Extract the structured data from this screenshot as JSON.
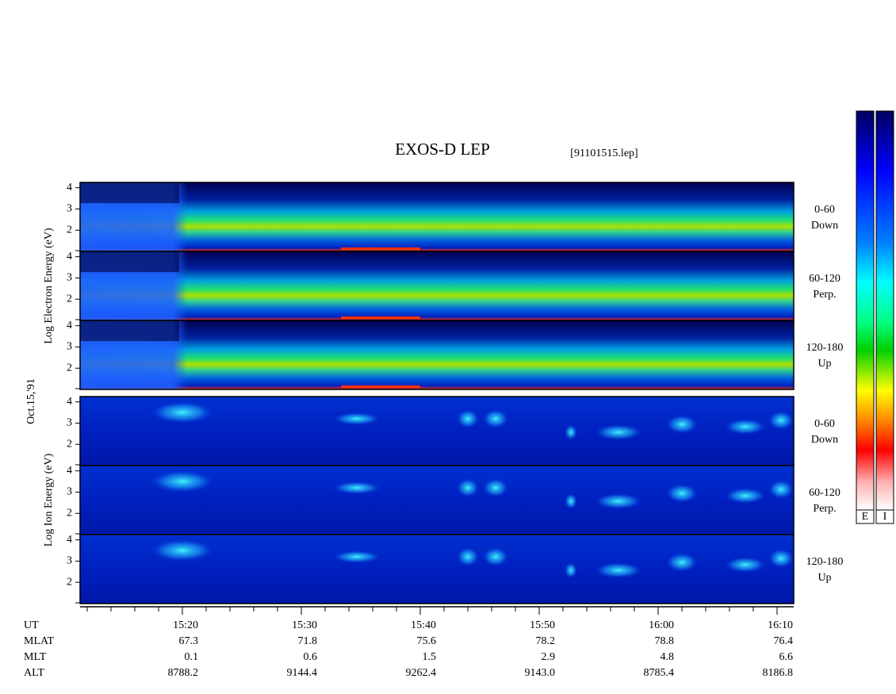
{
  "chart_data": {
    "type": "spectrogram",
    "title": "EXOS-D LEP",
    "subtitle": "[91101515.lep]",
    "date_label": "Oct.15,'91",
    "xlim": [
      911.4,
      971.4
    ],
    "xticks": [
      {
        "value": 920,
        "label": "15:20"
      },
      {
        "value": 930,
        "label": "15:30"
      },
      {
        "value": 940,
        "label": "15:40"
      },
      {
        "value": 950,
        "label": "15:50"
      },
      {
        "value": 960,
        "label": "16:00"
      },
      {
        "value": 970,
        "label": "16:10"
      }
    ],
    "x_label": "UT",
    "ylim": [
      1,
      4.25
    ],
    "yticks": [
      2,
      3,
      4
    ],
    "groups": [
      {
        "ylabel": "Log Electron Energy (eV)",
        "panels": [
          {
            "label": "0-60",
            "direction": "Down"
          },
          {
            "label": "60-120",
            "direction": "Perp."
          },
          {
            "label": "120-180",
            "direction": "Up"
          }
        ]
      },
      {
        "ylabel": "Log Ion Energy (eV)",
        "panels": [
          {
            "label": "0-60",
            "direction": "Down"
          },
          {
            "label": "60-120",
            "direction": "Perp."
          },
          {
            "label": "120-180",
            "direction": "Up"
          }
        ]
      }
    ],
    "ephemeris": [
      {
        "name": "MLAT",
        "values": [
          "67.3",
          "71.8",
          "75.6",
          "78.2",
          "78.8",
          "76.4"
        ]
      },
      {
        "name": "MLT",
        "values": [
          "0.1",
          "0.6",
          "1.5",
          "2.9",
          "4.8",
          "6.6"
        ]
      },
      {
        "name": "ALT",
        "values": [
          "8788.2",
          "9144.4",
          "9262.4",
          "9143.0",
          "8785.4",
          "8186.8"
        ]
      }
    ],
    "colorbar_labels": [
      "E",
      "I"
    ]
  }
}
